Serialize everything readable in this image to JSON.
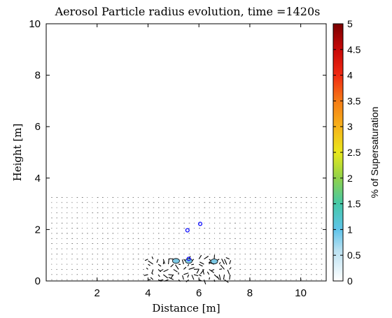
{
  "chart_data": {
    "type": "scatter",
    "title": "Aerosol Particle radius evolution, time =1420s",
    "xlabel": "Distance [m]",
    "ylabel": "Height [m]",
    "xlim": [
      0,
      11
    ],
    "ylim": [
      0,
      10
    ],
    "xticks": [
      "2",
      "4",
      "6",
      "8",
      "10"
    ],
    "yticks": [
      "0",
      "2",
      "4",
      "6",
      "8",
      "10"
    ],
    "grid": false,
    "series": [
      {
        "marker": "circle-open",
        "color": "#1a1aff",
        "points": [
          {
            "x": 6.05,
            "y": 2.22
          },
          {
            "x": 5.55,
            "y": 1.97
          },
          {
            "x": 5.6,
            "y": 0.86
          }
        ]
      }
    ],
    "droplets": [
      {
        "x": 5.1,
        "y": 0.78,
        "supersaturation": 1.0
      },
      {
        "x": 5.6,
        "y": 0.78,
        "supersaturation": 1.0
      },
      {
        "x": 6.6,
        "y": 0.76,
        "supersaturation": 1.0
      }
    ],
    "vector_field": {
      "x_range": [
        0.2,
        10.8
      ],
      "y_range": [
        0.05,
        3.3
      ],
      "strong_region": {
        "x": [
          4.0,
          7.4
        ],
        "y": [
          0.05,
          0.95
        ]
      }
    },
    "colorbar": {
      "label": "% of Supersaturation",
      "range": [
        0,
        5
      ],
      "ticks": [
        "0",
        "0.5",
        "1",
        "1.5",
        "2",
        "2.5",
        "3",
        "3.5",
        "4",
        "4.5",
        "5"
      ],
      "colormap": "jet-white"
    }
  }
}
